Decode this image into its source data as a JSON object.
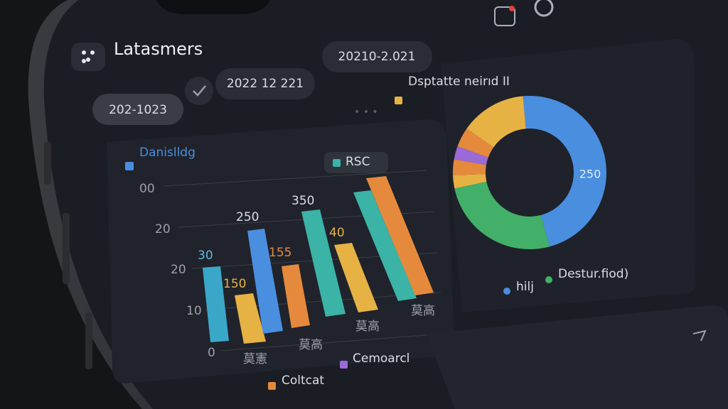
{
  "header": {
    "title": "Latasmers"
  },
  "date_chips": [
    "202-1023",
    "2022 12 221",
    "20210-2.021"
  ],
  "bar_panel": {
    "legend": "Danislldg",
    "tooltip": "RSC",
    "y_labels": [
      "00",
      "20",
      "20",
      "10",
      "0"
    ],
    "bar_labels": [
      "30",
      "150",
      "250",
      "155",
      "350",
      "40"
    ],
    "x_labels": [
      "莫憲",
      "莫高",
      "莫高",
      "莫高"
    ],
    "legend_bottom": [
      "Coltcat",
      "Cemoarcl"
    ]
  },
  "donut_panel": {
    "legend": "Dsptatte neirıd II",
    "center_label": "250",
    "legend_bottom": [
      "hilj",
      "Destur.fiod)"
    ]
  }
}
